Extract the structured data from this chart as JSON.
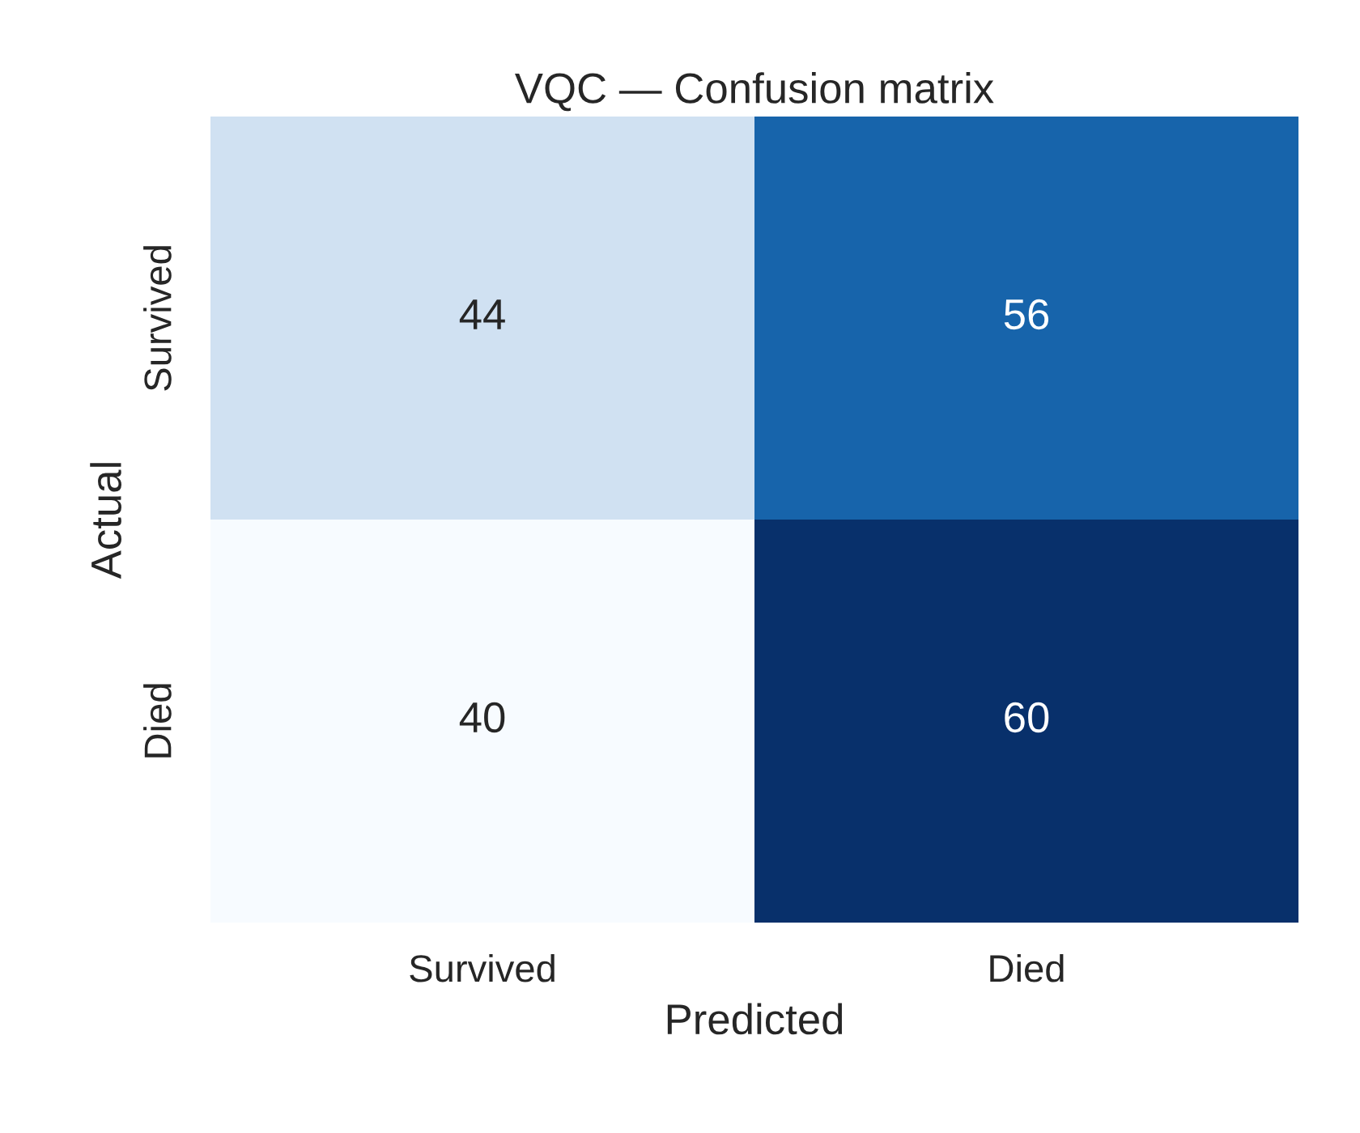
{
  "chart_data": {
    "type": "heatmap",
    "title": "VQC — Confusion matrix",
    "xlabel": "Predicted",
    "ylabel": "Actual",
    "categories": [
      "Survived",
      "Died"
    ],
    "y_categories": [
      "Survived",
      "Died"
    ],
    "cells": [
      [
        44,
        56
      ],
      [
        40,
        60
      ]
    ],
    "data_labels": true
  }
}
